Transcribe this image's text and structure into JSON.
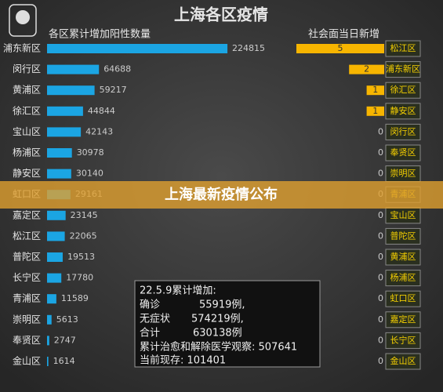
{
  "title": "上海各区疫情",
  "banner": "上海最新疫情公布",
  "summary": {
    "lines": [
      "22.5.9累计增加:",
      "确诊",
      "55919例,",
      "无症状",
      "574219例,",
      "合计",
      "630138例",
      "累计治愈和解除医学观察: 507641",
      "当前现存: 101401"
    ]
  },
  "chart_data": [
    {
      "type": "bar",
      "orientation": "horizontal",
      "title": "各区累计增加阳性数量",
      "color": "#1ba5e3",
      "categories": [
        "浦东新区",
        "闵行区",
        "黄浦区",
        "徐汇区",
        "宝山区",
        "杨浦区",
        "静安区",
        "虹口区",
        "嘉定区",
        "松江区",
        "普陀区",
        "长宁区",
        "青浦区",
        "崇明区",
        "奉贤区",
        "金山区"
      ],
      "values": [
        224815,
        64688,
        59217,
        44844,
        42143,
        30978,
        30140,
        29161,
        23145,
        22065,
        19513,
        17780,
        11589,
        5613,
        2747,
        1614
      ],
      "xlim": [
        0,
        300000
      ]
    },
    {
      "type": "bar",
      "orientation": "horizontal",
      "title": "社会面当日新增",
      "color": "#f7b500",
      "categories": [
        "松江区",
        "浦东新区",
        "徐汇区",
        "静安区",
        "闵行区",
        "奉贤区",
        "崇明区",
        "青浦区",
        "宝山区",
        "普陀区",
        "黄浦区",
        "杨浦区",
        "虹口区",
        "嘉定区",
        "长宁区",
        "金山区"
      ],
      "values": [
        5,
        2,
        1,
        1,
        0,
        0,
        0,
        0,
        0,
        0,
        0,
        0,
        0,
        0,
        0,
        0
      ],
      "xlim": [
        0,
        5
      ]
    }
  ]
}
